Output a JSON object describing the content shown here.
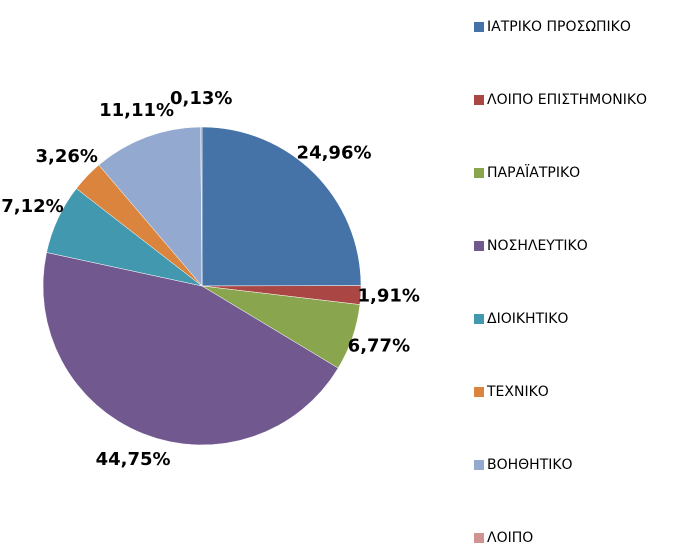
{
  "chart_data": {
    "type": "pie",
    "categories": [
      "ΙΑΤΡΙΚΟ ΠΡΟΣΩΠΙΚΟ",
      "ΛΟΙΠΟ ΕΠΙΣΤΗΜΟΝΙΚΟ",
      "ΠΑΡΑΪΑΤΡΙΚΟ",
      "ΝΟΣΗΛΕΥΤΙΚΟ",
      "ΔΙΟΙΚΗΤΙΚΟ",
      "ΤΕΧΝΙΚΟ",
      "ΒΟΗΘΗΤΙΚΟ",
      "ΛΟΙΠΟ"
    ],
    "values": [
      24.96,
      1.91,
      6.77,
      44.75,
      7.12,
      3.26,
      11.11,
      0.13
    ],
    "value_labels": [
      "24,96%",
      "1,91%",
      "6,77%",
      "44,75%",
      "7,12%",
      "3,26%",
      "11,11%",
      "0,13%"
    ],
    "colors": [
      "#4572a7",
      "#aa4643",
      "#89a54e",
      "#71588f",
      "#4198af",
      "#db843d",
      "#93a9cf",
      "#d19392"
    ],
    "legend": "right"
  }
}
